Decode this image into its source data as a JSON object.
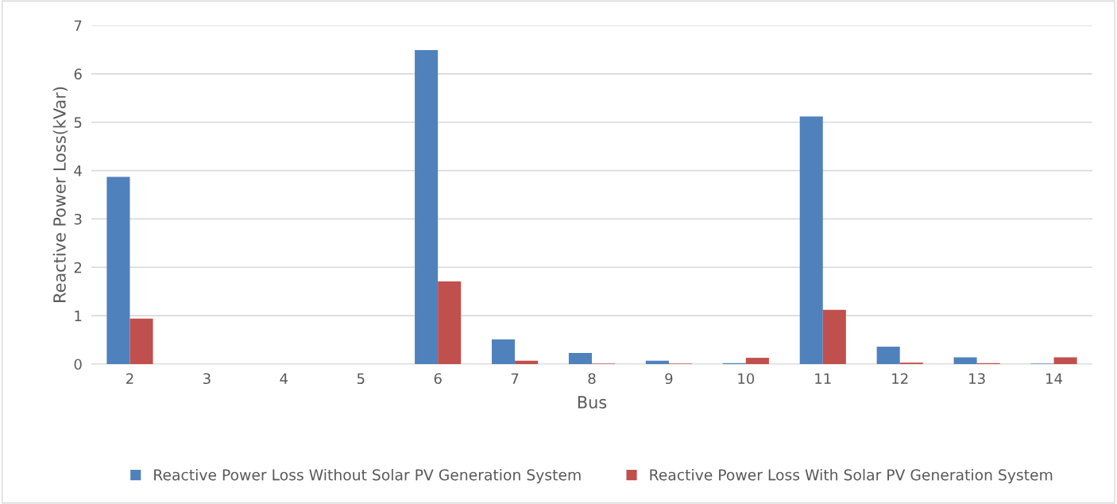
{
  "chart_data": {
    "type": "bar",
    "xlabel": "Bus",
    "ylabel": "Reactive Power Loss(kVar)",
    "categories": [
      "2",
      "3",
      "4",
      "5",
      "6",
      "7",
      "8",
      "9",
      "10",
      "11",
      "12",
      "13",
      "14"
    ],
    "series": [
      {
        "name": "Reactive Power Loss Without Solar PV Generation System",
        "color": "#4f81bd",
        "values": [
          3.87,
          0,
          0,
          0,
          6.49,
          0.51,
          0.23,
          0.07,
          0.02,
          5.12,
          0.36,
          0.14,
          0.01
        ]
      },
      {
        "name": "Reactive Power Loss With Solar PV Generation System",
        "color": "#c0504d",
        "values": [
          0.94,
          0,
          0,
          0,
          1.71,
          0.07,
          0.01,
          0.01,
          0.13,
          1.12,
          0.03,
          0.02,
          0.14
        ]
      }
    ],
    "ylim": [
      0,
      7
    ],
    "yticks": [
      0,
      1,
      2,
      3,
      4,
      5,
      6,
      7
    ],
    "grid": "y",
    "legend": "bottom"
  }
}
